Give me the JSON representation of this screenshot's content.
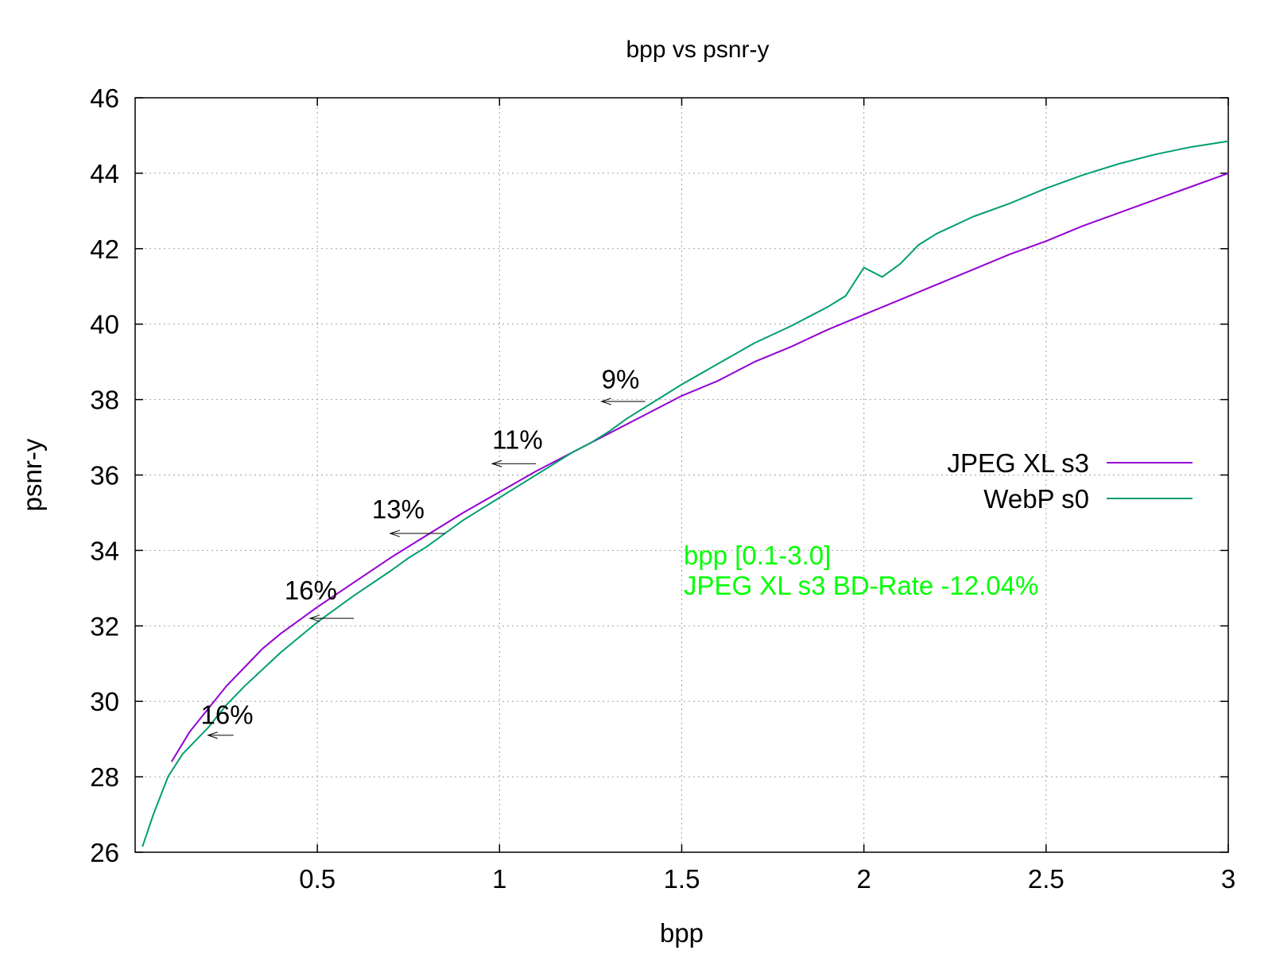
{
  "chart_data": {
    "type": "line",
    "title": "bpp vs psnr-y",
    "xlabel": "bpp",
    "ylabel": "psnr-y",
    "xlim": [
      0.0,
      3.0
    ],
    "ylim": [
      26,
      46
    ],
    "xticks": [
      0.5,
      1,
      1.5,
      2,
      2.5,
      3
    ],
    "yticks": [
      26,
      28,
      30,
      32,
      34,
      36,
      38,
      40,
      42,
      44,
      46
    ],
    "grid": true,
    "legend_position": "right",
    "series": [
      {
        "name": "JPEG XL s3",
        "color": "#9400d3",
        "points": [
          [
            0.1,
            28.4
          ],
          [
            0.15,
            29.2
          ],
          [
            0.2,
            29.8
          ],
          [
            0.25,
            30.4
          ],
          [
            0.3,
            30.9
          ],
          [
            0.35,
            31.4
          ],
          [
            0.4,
            31.8
          ],
          [
            0.45,
            32.15
          ],
          [
            0.5,
            32.5
          ],
          [
            0.6,
            33.15
          ],
          [
            0.7,
            33.8
          ],
          [
            0.8,
            34.4
          ],
          [
            0.9,
            35.0
          ],
          [
            1.0,
            35.55
          ],
          [
            1.1,
            36.1
          ],
          [
            1.2,
            36.6
          ],
          [
            1.3,
            37.1
          ],
          [
            1.4,
            37.6
          ],
          [
            1.5,
            38.1
          ],
          [
            1.6,
            38.5
          ],
          [
            1.7,
            39.0
          ],
          [
            1.8,
            39.4
          ],
          [
            1.9,
            39.85
          ],
          [
            2.0,
            40.25
          ],
          [
            2.1,
            40.65
          ],
          [
            2.2,
            41.05
          ],
          [
            2.3,
            41.45
          ],
          [
            2.4,
            41.85
          ],
          [
            2.5,
            42.2
          ],
          [
            2.6,
            42.6
          ],
          [
            2.7,
            42.95
          ],
          [
            2.8,
            43.3
          ],
          [
            2.9,
            43.65
          ],
          [
            3.0,
            44.0
          ]
        ]
      },
      {
        "name": "WebP s0",
        "color": "#009e73",
        "points": [
          [
            0.02,
            26.15
          ],
          [
            0.05,
            27.0
          ],
          [
            0.09,
            28.0
          ],
          [
            0.13,
            28.6
          ],
          [
            0.2,
            29.3
          ],
          [
            0.25,
            29.9
          ],
          [
            0.3,
            30.4
          ],
          [
            0.35,
            30.85
          ],
          [
            0.4,
            31.3
          ],
          [
            0.45,
            31.7
          ],
          [
            0.5,
            32.1
          ],
          [
            0.55,
            32.45
          ],
          [
            0.6,
            32.8
          ],
          [
            0.7,
            33.45
          ],
          [
            0.75,
            33.8
          ],
          [
            0.8,
            34.1
          ],
          [
            0.85,
            34.45
          ],
          [
            0.9,
            34.8
          ],
          [
            0.95,
            35.1
          ],
          [
            1.0,
            35.4
          ],
          [
            1.05,
            35.7
          ],
          [
            1.1,
            36.0
          ],
          [
            1.15,
            36.3
          ],
          [
            1.2,
            36.6
          ],
          [
            1.25,
            36.85
          ],
          [
            1.3,
            37.15
          ],
          [
            1.35,
            37.5
          ],
          [
            1.4,
            37.8
          ],
          [
            1.5,
            38.4
          ],
          [
            1.6,
            38.95
          ],
          [
            1.7,
            39.5
          ],
          [
            1.8,
            39.95
          ],
          [
            1.9,
            40.45
          ],
          [
            1.95,
            40.75
          ],
          [
            2.0,
            41.5
          ],
          [
            2.05,
            41.25
          ],
          [
            2.1,
            41.6
          ],
          [
            2.15,
            42.1
          ],
          [
            2.2,
            42.4
          ],
          [
            2.3,
            42.85
          ],
          [
            2.4,
            43.2
          ],
          [
            2.5,
            43.6
          ],
          [
            2.6,
            43.95
          ],
          [
            2.7,
            44.25
          ],
          [
            2.8,
            44.5
          ],
          [
            2.9,
            44.7
          ],
          [
            3.0,
            44.85
          ]
        ]
      }
    ],
    "annotations": [
      {
        "text": "16%",
        "x": 0.18,
        "y": 29.4,
        "x_from": 0.27,
        "x_to": 0.2,
        "y_arrow": 29.1
      },
      {
        "text": "16%",
        "x": 0.41,
        "y": 32.7,
        "x_from": 0.6,
        "x_to": 0.48,
        "y_arrow": 32.2
      },
      {
        "text": "13%",
        "x": 0.65,
        "y": 34.85,
        "x_from": 0.85,
        "x_to": 0.7,
        "y_arrow": 34.45
      },
      {
        "text": "11%",
        "x": 0.98,
        "y": 36.7,
        "x_from": 1.1,
        "x_to": 0.98,
        "y_arrow": 36.3
      },
      {
        "text": "9%",
        "x": 1.28,
        "y": 38.3,
        "x_from": 1.4,
        "x_to": 1.28,
        "y_arrow": 37.95
      }
    ],
    "info_lines": [
      "bpp [0.1-3.0]",
      "JPEG XL s3 BD-Rate -12.04%"
    ],
    "info_color": "#00ff00"
  }
}
